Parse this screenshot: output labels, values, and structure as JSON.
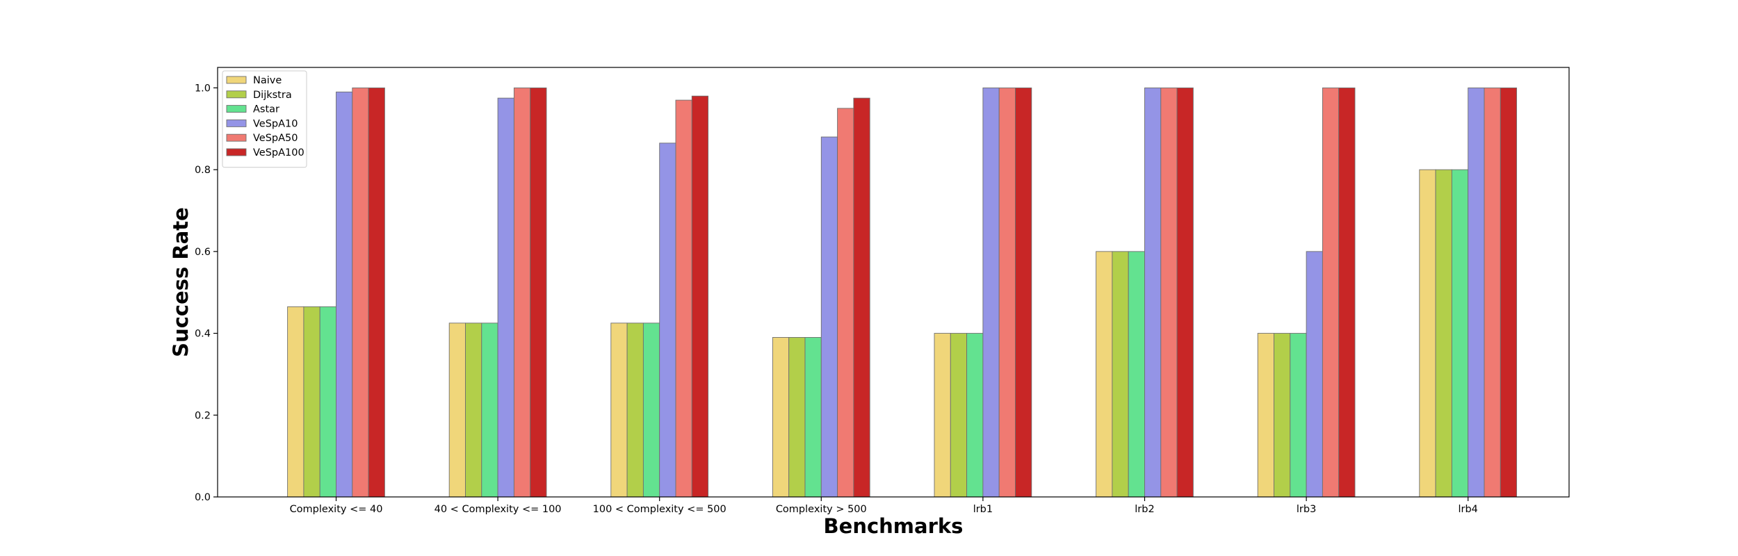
{
  "chart_data": {
    "type": "bar",
    "title": "",
    "xlabel": "Benchmarks",
    "ylabel": "Success Rate",
    "ylim": [
      0,
      1.05
    ],
    "yticks": [
      "0.0",
      "0.2",
      "0.4",
      "0.6",
      "0.8",
      "1.0"
    ],
    "grid": false,
    "legend_position": "top-left",
    "categories": [
      "Complexity <= 40",
      "40 < Complexity <= 100",
      "100 < Complexity <= 500",
      "Complexity > 500",
      "lrb1",
      "lrb2",
      "lrb3",
      "lrb4"
    ],
    "series": [
      {
        "name": "Naive",
        "color": "#f0d67a",
        "values": [
          0.465,
          0.425,
          0.425,
          0.39,
          0.4,
          0.6,
          0.4,
          0.8
        ]
      },
      {
        "name": "Dijkstra",
        "color": "#b2cf4a",
        "values": [
          0.465,
          0.425,
          0.425,
          0.39,
          0.4,
          0.6,
          0.4,
          0.8
        ]
      },
      {
        "name": "Astar",
        "color": "#63e290",
        "values": [
          0.465,
          0.425,
          0.425,
          0.39,
          0.4,
          0.6,
          0.4,
          0.8
        ]
      },
      {
        "name": "VeSpA10",
        "color": "#9494e6",
        "values": [
          0.99,
          0.975,
          0.865,
          0.88,
          1.0,
          1.0,
          0.6,
          1.0
        ]
      },
      {
        "name": "VeSpA50",
        "color": "#f07a72",
        "values": [
          1.0,
          1.0,
          0.97,
          0.95,
          1.0,
          1.0,
          1.0,
          1.0
        ]
      },
      {
        "name": "VeSpA100",
        "color": "#c82626",
        "values": [
          1.0,
          1.0,
          0.98,
          0.975,
          1.0,
          1.0,
          1.0,
          1.0
        ]
      }
    ]
  }
}
